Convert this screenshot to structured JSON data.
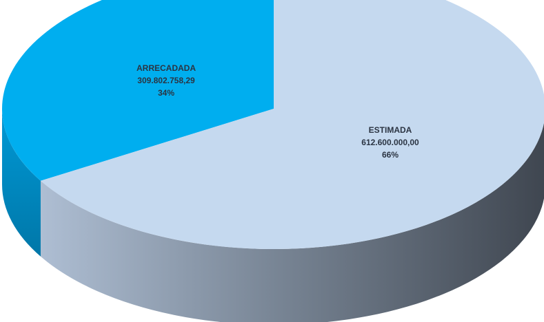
{
  "chart_data": {
    "type": "pie",
    "style": "3d",
    "slices": [
      {
        "label": "ARRECADADA",
        "value": 309802758.29,
        "value_text": "309.802.758,29",
        "percent": 34,
        "percent_text": "34%",
        "color": "#00aeef"
      },
      {
        "label": "ESTIMADA",
        "value": 612600000.0,
        "value_text": "612.600.000,00",
        "percent": 66,
        "percent_text": "66%",
        "color": "#c5d9ef"
      }
    ],
    "legend": "none"
  }
}
